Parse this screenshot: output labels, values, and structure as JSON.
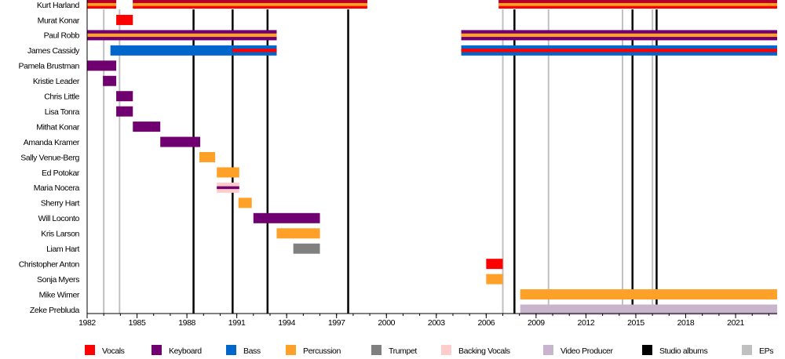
{
  "chart_data": {
    "type": "timeline",
    "title": "",
    "xlabel": "",
    "ylabel": "",
    "xlim": [
      1982,
      2023.5
    ],
    "x_ticks": [
      1982,
      1985,
      1988,
      1991,
      1994,
      1997,
      2000,
      2003,
      2006,
      2009,
      2012,
      2015,
      2018,
      2021
    ],
    "minor_tick_step": 1,
    "roles": {
      "vocals": {
        "label": "Vocals",
        "color": "#ff0000"
      },
      "keyboard": {
        "label": "Keyboard",
        "color": "#700070"
      },
      "bass": {
        "label": "Bass",
        "color": "#0066cc"
      },
      "percussion": {
        "label": "Percussion",
        "color": "#ffa128"
      },
      "trumpet": {
        "label": "Trumpet",
        "color": "#808080"
      },
      "backing_vocals": {
        "label": "Backing Vocals",
        "color": "#ffcccc"
      },
      "video_producer": {
        "label": "Video Producer",
        "color": "#c8b4cc"
      },
      "crimson_band": {
        "label": "",
        "color": "#b0002a"
      }
    },
    "legend": [
      {
        "key": "vocals",
        "label": "Vocals",
        "color": "#ff0000"
      },
      {
        "key": "keyboard",
        "label": "Keyboard",
        "color": "#700070"
      },
      {
        "key": "bass",
        "label": "Bass",
        "color": "#0066cc"
      },
      {
        "key": "percussion",
        "label": "Percussion",
        "color": "#ffa128"
      },
      {
        "key": "trumpet",
        "label": "Trumpet",
        "color": "#808080"
      },
      {
        "key": "backing_vocals",
        "label": "Backing Vocals",
        "color": "#ffcccc"
      },
      {
        "key": "video_producer",
        "label": "Video Producer",
        "color": "#c8b4cc"
      },
      {
        "key": "studio_albums",
        "label": "Studio albums",
        "color": "#000000"
      },
      {
        "key": "eps",
        "label": "EPs",
        "color": "#c0c0c0"
      }
    ],
    "legend_position": "bottom",
    "studio_albums": [
      1988.4,
      1990.75,
      1992.85,
      1997.7,
      2007.7,
      2014.8,
      2016.25
    ],
    "eps": [
      1983.0,
      1983.95,
      2007.0,
      2009.75,
      2014.2,
      2016.0
    ],
    "members": [
      {
        "name": "Kurt Harland",
        "periods": [
          {
            "start": 1982.0,
            "end": 1983.75,
            "main": "vocals",
            "top": "crimson_band",
            "middle": "percussion"
          },
          {
            "start": 1984.75,
            "end": 1998.85,
            "main": "vocals",
            "top": "crimson_band",
            "middle": "percussion"
          },
          {
            "start": 2006.75,
            "end": 2023.5,
            "main": "vocals",
            "top": "crimson_band",
            "middle": "percussion"
          }
        ]
      },
      {
        "name": "Murat Konar",
        "periods": [
          {
            "start": 1983.75,
            "end": 1984.75,
            "main": "vocals"
          }
        ]
      },
      {
        "name": "Paul Robb",
        "periods": [
          {
            "start": 1982.0,
            "end": 1993.4,
            "main": "keyboard",
            "middle": "percussion"
          },
          {
            "start": 2004.5,
            "end": 2023.5,
            "main": "keyboard",
            "middle": "percussion"
          }
        ]
      },
      {
        "name": "James Cassidy",
        "periods": [
          {
            "start": 1983.4,
            "end": 1990.75,
            "main": "bass"
          },
          {
            "start": 1990.75,
            "end": 1993.4,
            "main": "bass",
            "middle": "vocals"
          },
          {
            "start": 2004.5,
            "end": 2023.5,
            "main": "bass",
            "middle": "vocals"
          }
        ]
      },
      {
        "name": "Pamela Brustman",
        "periods": [
          {
            "start": 1982.0,
            "end": 1983.75,
            "main": "keyboard"
          }
        ]
      },
      {
        "name": "Kristie Leader",
        "periods": [
          {
            "start": 1982.95,
            "end": 1983.75,
            "main": "keyboard"
          }
        ]
      },
      {
        "name": "Chris Little",
        "periods": [
          {
            "start": 1983.75,
            "end": 1984.75,
            "main": "keyboard"
          }
        ]
      },
      {
        "name": "Lisa Tonra",
        "periods": [
          {
            "start": 1983.75,
            "end": 1984.75,
            "main": "keyboard"
          }
        ]
      },
      {
        "name": "Mithat Konar",
        "periods": [
          {
            "start": 1984.75,
            "end": 1986.4,
            "main": "keyboard"
          }
        ]
      },
      {
        "name": "Amanda Kramer",
        "periods": [
          {
            "start": 1986.4,
            "end": 1988.8,
            "main": "keyboard"
          }
        ]
      },
      {
        "name": "Sally Venue-Berg",
        "periods": [
          {
            "start": 1988.75,
            "end": 1989.7,
            "main": "percussion"
          }
        ]
      },
      {
        "name": "Ed Potokar",
        "periods": [
          {
            "start": 1989.8,
            "end": 1991.15,
            "main": "percussion"
          }
        ]
      },
      {
        "name": "Maria Nocera",
        "periods": [
          {
            "start": 1989.8,
            "end": 1991.15,
            "main": "backing_vocals",
            "middle": "keyboard"
          }
        ]
      },
      {
        "name": "Sherry Hart",
        "periods": [
          {
            "start": 1991.1,
            "end": 1991.9,
            "main": "percussion"
          }
        ]
      },
      {
        "name": "Will Loconto",
        "periods": [
          {
            "start": 1992.0,
            "end": 1996.0,
            "main": "keyboard"
          }
        ]
      },
      {
        "name": "Kris Larson",
        "periods": [
          {
            "start": 1993.4,
            "end": 1996.0,
            "main": "percussion"
          }
        ]
      },
      {
        "name": "Liam Hart",
        "periods": [
          {
            "start": 1994.4,
            "end": 1996.0,
            "main": "trumpet"
          }
        ]
      },
      {
        "name": "Christopher Anton",
        "periods": [
          {
            "start": 2006.0,
            "end": 2007.0,
            "main": "vocals"
          }
        ]
      },
      {
        "name": "Sonja Myers",
        "periods": [
          {
            "start": 2006.0,
            "end": 2007.0,
            "main": "percussion"
          }
        ]
      },
      {
        "name": "Mike Wimer",
        "periods": [
          {
            "start": 2008.05,
            "end": 2023.5,
            "main": "percussion"
          }
        ]
      },
      {
        "name": "Zeke Prebluda",
        "periods": [
          {
            "start": 2008.05,
            "end": 2023.5,
            "main": "video_producer"
          }
        ]
      }
    ]
  }
}
